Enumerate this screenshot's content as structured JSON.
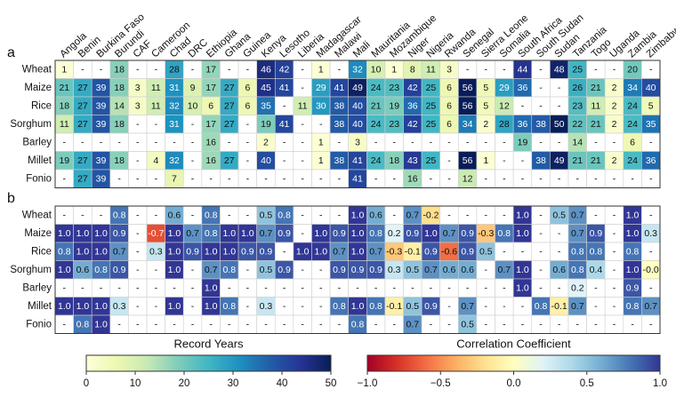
{
  "chart_data": [
    {
      "type": "heatmap",
      "panel_label": "a",
      "x": [
        "Angola",
        "Benin",
        "Burkina Faso",
        "Burundi",
        "CAF",
        "Cameroon",
        "Chad",
        "DRC",
        "Ethiopia",
        "Ghana",
        "Guinea",
        "Kenya",
        "Lesotho",
        "Liberia",
        "Madagascar",
        "Malawi",
        "Mali",
        "Mauritania",
        "Mozambique",
        "Niger",
        "Nigeria",
        "Rwanda",
        "Senegal",
        "Sierra Leone",
        "Somalia",
        "South Africa",
        "South Sudan",
        "Sudan",
        "Tanzania",
        "Togo",
        "Uganda",
        "Zambia",
        "Zimbabwe"
      ],
      "y": [
        "Wheat",
        "Maize",
        "Rice",
        "Sorghum",
        "Barley",
        "Millet",
        "Fonio"
      ],
      "missing_label": "-",
      "z": [
        [
          1,
          null,
          null,
          18,
          null,
          null,
          28,
          null,
          17,
          null,
          null,
          46,
          42,
          null,
          1,
          null,
          32,
          10,
          1,
          8,
          11,
          3,
          null,
          null,
          null,
          44,
          null,
          48,
          25,
          null,
          null,
          20,
          null
        ],
        [
          21,
          27,
          39,
          18,
          3,
          11,
          31,
          9,
          17,
          27,
          6,
          45,
          41,
          null,
          29,
          41,
          49,
          24,
          23,
          42,
          25,
          6,
          56,
          5,
          29,
          36,
          null,
          null,
          26,
          21,
          2,
          34,
          40
        ],
        [
          18,
          27,
          39,
          14,
          3,
          11,
          32,
          10,
          6,
          27,
          6,
          35,
          null,
          11,
          30,
          38,
          40,
          21,
          19,
          36,
          25,
          6,
          56,
          5,
          12,
          null,
          null,
          null,
          23,
          11,
          2,
          24,
          5
        ],
        [
          11,
          27,
          39,
          18,
          null,
          null,
          31,
          null,
          17,
          27,
          null,
          19,
          41,
          null,
          null,
          38,
          40,
          24,
          23,
          42,
          25,
          6,
          34,
          2,
          28,
          36,
          38,
          50,
          22,
          21,
          2,
          24,
          35
        ],
        [
          null,
          null,
          null,
          null,
          null,
          null,
          null,
          null,
          16,
          null,
          null,
          2,
          null,
          null,
          1,
          null,
          3,
          null,
          null,
          null,
          null,
          null,
          null,
          null,
          null,
          19,
          null,
          null,
          14,
          null,
          null,
          6,
          null
        ],
        [
          19,
          27,
          39,
          18,
          null,
          4,
          32,
          null,
          16,
          27,
          null,
          40,
          null,
          null,
          1,
          38,
          41,
          24,
          18,
          43,
          25,
          null,
          56,
          1,
          null,
          null,
          38,
          49,
          21,
          21,
          2,
          24,
          36
        ],
        [
          null,
          27,
          39,
          null,
          null,
          null,
          7,
          null,
          null,
          null,
          null,
          null,
          null,
          null,
          null,
          null,
          41,
          null,
          null,
          16,
          null,
          null,
          12,
          null,
          null,
          null,
          null,
          null,
          null,
          null,
          null,
          null,
          null
        ]
      ],
      "colorbar_label": "Record Years",
      "zlim": [
        0,
        50
      ],
      "zticks": [
        0,
        10,
        20,
        30,
        40,
        50
      ],
      "colormap": [
        "#ffffd9",
        "#edf8b1",
        "#c7e9b4",
        "#7fcdbb",
        "#41b6c4",
        "#1d91c0",
        "#225ea8",
        "#253494",
        "#081d58"
      ]
    },
    {
      "type": "heatmap",
      "panel_label": "b",
      "y": [
        "Wheat",
        "Maize",
        "Rice",
        "Sorghum",
        "Barley",
        "Millet",
        "Fonio"
      ],
      "z": [
        [
          null,
          null,
          null,
          0.8,
          null,
          null,
          0.6,
          null,
          0.8,
          null,
          null,
          0.5,
          0.8,
          null,
          null,
          null,
          1.0,
          0.6,
          null,
          0.7,
          -0.2,
          null,
          null,
          null,
          null,
          1.0,
          null,
          0.5,
          0.7,
          null,
          null,
          1.0,
          null
        ],
        [
          1.0,
          1.0,
          1.0,
          0.9,
          null,
          -0.7,
          1.0,
          0.7,
          0.8,
          1.0,
          1.0,
          0.7,
          0.9,
          null,
          1.0,
          0.9,
          1.0,
          0.8,
          0.2,
          0.9,
          1.0,
          0.7,
          0.9,
          -0.3,
          0.8,
          1.0,
          null,
          null,
          0.7,
          0.9,
          null,
          1.0,
          0.3
        ],
        [
          0.8,
          1.0,
          1.0,
          0.7,
          null,
          0.3,
          1.0,
          0.9,
          1.0,
          1.0,
          0.9,
          0.9,
          null,
          1.0,
          1.0,
          0.7,
          1.0,
          0.7,
          -0.3,
          -0.1,
          0.9,
          -0.6,
          0.9,
          0.5,
          null,
          null,
          null,
          null,
          0.8,
          0.8,
          null,
          0.8,
          null
        ],
        [
          1.0,
          0.6,
          0.8,
          0.9,
          null,
          null,
          1.0,
          null,
          0.7,
          0.8,
          null,
          0.5,
          0.9,
          null,
          null,
          0.9,
          0.9,
          0.9,
          0.3,
          0.5,
          0.7,
          0.6,
          0.6,
          null,
          0.7,
          1.0,
          null,
          0.6,
          0.8,
          0.4,
          null,
          1.0,
          -0.0
        ],
        [
          null,
          null,
          null,
          null,
          null,
          null,
          null,
          null,
          1.0,
          null,
          null,
          null,
          null,
          null,
          null,
          null,
          null,
          null,
          null,
          null,
          null,
          null,
          null,
          null,
          null,
          1.0,
          null,
          null,
          0.2,
          null,
          null,
          0.9,
          null
        ],
        [
          1.0,
          1.0,
          1.0,
          0.3,
          null,
          null,
          1.0,
          null,
          1.0,
          0.8,
          null,
          0.3,
          null,
          null,
          null,
          0.8,
          1.0,
          0.8,
          -0.1,
          0.5,
          0.9,
          null,
          0.7,
          null,
          null,
          null,
          0.8,
          -0.1,
          0.7,
          null,
          null,
          0.8,
          0.7
        ],
        [
          null,
          0.8,
          1.0,
          null,
          null,
          null,
          null,
          null,
          null,
          null,
          null,
          null,
          null,
          null,
          null,
          null,
          0.8,
          null,
          null,
          0.7,
          null,
          null,
          0.5,
          null,
          null,
          null,
          null,
          null,
          null,
          null,
          null,
          null,
          null
        ]
      ],
      "z_labels": [
        [
          "-",
          "-",
          "-",
          "0.8",
          "-",
          "-",
          "0.6",
          "-",
          "0.8",
          "-",
          "-",
          "0.5",
          "0.8",
          "-",
          "-",
          "-",
          "1.0",
          "0.6",
          "-",
          "0.7",
          "-0.2",
          "-",
          "-",
          "-",
          "-",
          "1.0",
          "-",
          "0.5",
          "0.7",
          "-",
          "-",
          "1.0",
          "-"
        ],
        [
          "1.0",
          "1.0",
          "1.0",
          "0.9",
          "-",
          "-0.7",
          "1.0",
          "0.7",
          "0.8",
          "1.0",
          "1.0",
          "0.7",
          "0.9",
          "-",
          "1.0",
          "0.9",
          "1.0",
          "0.8",
          "0.2",
          "0.9",
          "1.0",
          "0.7",
          "0.9",
          "-0.3",
          "0.8",
          "1.0",
          "-",
          "-",
          "0.7",
          "0.9",
          "-",
          "1.0",
          "0.3"
        ],
        [
          "0.8",
          "1.0",
          "1.0",
          "0.7",
          "-",
          "0.3",
          "1.0",
          "0.9",
          "1.0",
          "1.0",
          "0.9",
          "0.9",
          "-",
          "1.0",
          "1.0",
          "0.7",
          "1.0",
          "0.7",
          "-0.3",
          "-0.1",
          "0.9",
          "-0.6",
          "0.9",
          "0.5",
          "-",
          "-",
          "-",
          "-",
          "0.8",
          "0.8",
          "-",
          "0.8",
          "-"
        ],
        [
          "1.0",
          "0.6",
          "0.8",
          "0.9",
          "-",
          "-",
          "1.0",
          "-",
          "0.7",
          "0.8",
          "-",
          "0.5",
          "0.9",
          "-",
          "-",
          "0.9",
          "0.9",
          "0.9",
          "0.3",
          "0.5",
          "0.7",
          "0.6",
          "0.6",
          "-",
          "0.7",
          "1.0",
          "-",
          "0.6",
          "0.8",
          "0.4",
          "-",
          "1.0",
          "-0.0"
        ],
        [
          "-",
          "-",
          "-",
          "-",
          "-",
          "-",
          "-",
          "-",
          "1.0",
          "-",
          "-",
          "-",
          "-",
          "-",
          "-",
          "-",
          "-",
          "-",
          "-",
          "-",
          "-",
          "-",
          "-",
          "-",
          "-",
          "1.0",
          "-",
          "-",
          "0.2",
          "-",
          "-",
          "0.9",
          "-"
        ],
        [
          "1.0",
          "1.0",
          "1.0",
          "0.3",
          "-",
          "-",
          "1.0",
          "-",
          "1.0",
          "0.8",
          "-",
          "0.3",
          "-",
          "-",
          "-",
          "0.8",
          "1.0",
          "0.8",
          "-0.1",
          "0.5",
          "0.9",
          "-",
          "0.7",
          "-",
          "-",
          "-",
          "0.8",
          "-0.1",
          "0.7",
          "-",
          "-",
          "0.8",
          "0.7"
        ],
        [
          "-",
          "0.8",
          "1.0",
          "-",
          "-",
          "-",
          "-",
          "-",
          "-",
          "-",
          "-",
          "-",
          "-",
          "-",
          "-",
          "-",
          "0.8",
          "-",
          "-",
          "0.7",
          "-",
          "-",
          "0.5",
          "-",
          "-",
          "-",
          "-",
          "-",
          "-",
          "-",
          "-",
          "-",
          "-"
        ]
      ],
      "colorbar_label": "Correlation Coefficient",
      "zlim": [
        -1,
        1
      ],
      "zticks": [
        {
          "value": -1,
          "label": "−1.0"
        },
        {
          "value": -0.5,
          "label": "−0.5"
        },
        {
          "value": 0,
          "label": "0.0"
        },
        {
          "value": 0.5,
          "label": "0.5"
        },
        {
          "value": 1,
          "label": "1.0"
        }
      ],
      "colormap": [
        "#a50026",
        "#d73027",
        "#f46d43",
        "#fdae61",
        "#fee090",
        "#ffffbf",
        "#e0f3f8",
        "#abd9e9",
        "#74add1",
        "#4575b4",
        "#313695"
      ]
    }
  ]
}
